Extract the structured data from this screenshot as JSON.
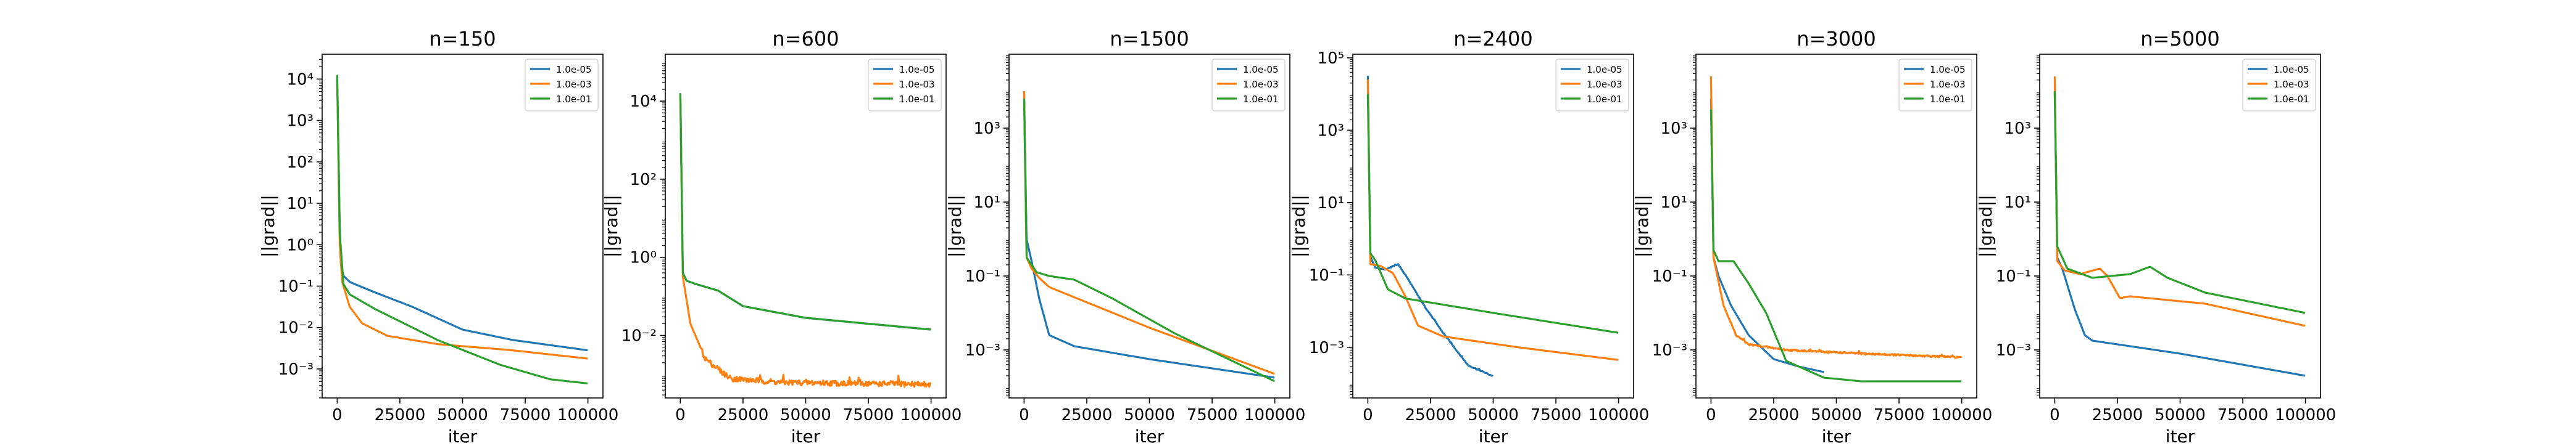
{
  "figure": {
    "colors": {
      "s1": "#1f77b4",
      "s2": "#ff7f0e",
      "s3": "#2ca02c"
    }
  },
  "chart_data": [
    {
      "type": "line",
      "title": "n=150",
      "xlabel": "iter",
      "ylabel": "||grad||",
      "xlim": [
        -6000,
        106000
      ],
      "ylim_log10": [
        -3.7,
        4.6
      ],
      "yscale": "log",
      "xticks": [
        0,
        25000,
        50000,
        75000,
        100000
      ],
      "xtick_labels": [
        "0",
        "25000",
        "50000",
        "75000",
        "100000"
      ],
      "yticks_exp": [
        -3,
        -2,
        -1,
        0,
        1,
        2,
        3,
        4
      ],
      "ytick_labels": [
        "10⁻³",
        "10⁻²",
        "10⁻¹",
        "10⁰",
        "10¹",
        "10²",
        "10³",
        "10⁴"
      ],
      "legend": {
        "entries": [
          "1.0e-05",
          "1.0e-03",
          "1.0e-01"
        ],
        "placement": "top-right"
      },
      "series": [
        {
          "name": "1.0e-05",
          "color_key": "s1",
          "noise": 0,
          "points": [
            [
              0,
              4.0
            ],
            [
              1000,
              0.5
            ],
            [
              1500,
              -0.5
            ],
            [
              2500,
              -0.75
            ],
            [
              5000,
              -0.9
            ],
            [
              15000,
              -1.15
            ],
            [
              30000,
              -1.5
            ],
            [
              50000,
              -2.05
            ],
            [
              70000,
              -2.3
            ],
            [
              100000,
              -2.55
            ]
          ]
        },
        {
          "name": "1.0e-03",
          "color_key": "s2",
          "noise": 0,
          "points": [
            [
              0,
              4.0
            ],
            [
              1000,
              0.0
            ],
            [
              2000,
              -0.9
            ],
            [
              5000,
              -1.5
            ],
            [
              10000,
              -1.9
            ],
            [
              20000,
              -2.2
            ],
            [
              40000,
              -2.4
            ],
            [
              70000,
              -2.55
            ],
            [
              100000,
              -2.75
            ]
          ]
        },
        {
          "name": "1.0e-01",
          "color_key": "s3",
          "noise": 0,
          "points": [
            [
              0,
              4.1
            ],
            [
              1000,
              0.3
            ],
            [
              2500,
              -0.95
            ],
            [
              5000,
              -1.2
            ],
            [
              15000,
              -1.55
            ],
            [
              40000,
              -2.3
            ],
            [
              65000,
              -2.9
            ],
            [
              85000,
              -3.25
            ],
            [
              100000,
              -3.35
            ]
          ]
        }
      ]
    },
    {
      "type": "line",
      "title": "n=600",
      "xlabel": "iter",
      "ylabel": "||grad||",
      "xlim": [
        -6000,
        106000
      ],
      "ylim_log10": [
        -3.6,
        5.2
      ],
      "yscale": "log",
      "xticks": [
        0,
        25000,
        50000,
        75000,
        100000
      ],
      "xtick_labels": [
        "0",
        "25000",
        "50000",
        "75000",
        "100000"
      ],
      "yticks_exp": [
        -2,
        0,
        2,
        4
      ],
      "ytick_labels": [
        "10⁻²",
        "10⁰",
        "10²",
        "10⁴"
      ],
      "legend": {
        "entries": [
          "1.0e-05",
          "1.0e-03",
          "1.0e-01"
        ],
        "placement": "top-right"
      },
      "series": [
        {
          "name": "1.0e-05",
          "color_key": "s1",
          "noise": 0,
          "points": [
            [
              0,
              4.2
            ],
            [
              1000,
              -0.4
            ],
            [
              2500,
              -0.6
            ],
            [
              7000,
              -0.7
            ],
            [
              15000,
              -0.85
            ],
            [
              25000,
              -1.25
            ],
            [
              50000,
              -1.55
            ],
            [
              100000,
              -1.85
            ]
          ]
        },
        {
          "name": "1.0e-03",
          "color_key": "s2",
          "noise": 0.25,
          "points": [
            [
              0,
              4.2
            ],
            [
              1000,
              -0.5
            ],
            [
              4000,
              -1.7
            ],
            [
              10000,
              -2.6
            ],
            [
              20000,
              -3.1
            ],
            [
              40000,
              -3.2
            ],
            [
              100000,
              -3.25
            ]
          ]
        },
        {
          "name": "1.0e-01",
          "color_key": "s3",
          "noise": 0,
          "points": [
            [
              0,
              4.2
            ],
            [
              1000,
              -0.4
            ],
            [
              2500,
              -0.6
            ],
            [
              7000,
              -0.7
            ],
            [
              15000,
              -0.85
            ],
            [
              25000,
              -1.25
            ],
            [
              50000,
              -1.55
            ],
            [
              100000,
              -1.85
            ]
          ]
        }
      ]
    },
    {
      "type": "line",
      "title": "n=1500",
      "xlabel": "iter",
      "ylabel": "||grad||",
      "xlim": [
        -6000,
        106000
      ],
      "ylim_log10": [
        -4.3,
        5.0
      ],
      "yscale": "log",
      "xticks": [
        0,
        25000,
        50000,
        75000,
        100000
      ],
      "xtick_labels": [
        "0",
        "25000",
        "50000",
        "75000",
        "100000"
      ],
      "yticks_exp": [
        -3,
        -1,
        1,
        3
      ],
      "ytick_labels": [
        "10⁻³",
        "10⁻¹",
        "10¹",
        "10³"
      ],
      "legend": {
        "entries": [
          "1.0e-05",
          "1.0e-03",
          "1.0e-01"
        ],
        "placement": "top-right"
      },
      "series": [
        {
          "name": "1.0e-05",
          "color_key": "s1",
          "noise": 0,
          "points": [
            [
              0,
              4.0
            ],
            [
              1000,
              0.0
            ],
            [
              3000,
              -0.6
            ],
            [
              6000,
              -1.6
            ],
            [
              10000,
              -2.6
            ],
            [
              20000,
              -2.9
            ],
            [
              50000,
              -3.25
            ],
            [
              100000,
              -3.75
            ]
          ]
        },
        {
          "name": "1.0e-03",
          "color_key": "s2",
          "noise": 0,
          "points": [
            [
              0,
              4.0
            ],
            [
              1000,
              -0.5
            ],
            [
              3000,
              -0.8
            ],
            [
              6000,
              -1.05
            ],
            [
              10000,
              -1.3
            ],
            [
              50000,
              -2.4
            ],
            [
              100000,
              -3.65
            ]
          ]
        },
        {
          "name": "1.0e-01",
          "color_key": "s3",
          "noise": 0,
          "points": [
            [
              0,
              3.8
            ],
            [
              1000,
              -0.5
            ],
            [
              5000,
              -0.9
            ],
            [
              10000,
              -1.0
            ],
            [
              20000,
              -1.1
            ],
            [
              35000,
              -1.6
            ],
            [
              60000,
              -2.55
            ],
            [
              100000,
              -3.85
            ]
          ]
        }
      ]
    },
    {
      "type": "line",
      "title": "n=2400",
      "xlabel": "iter",
      "ylabel": "||grad||",
      "xlim": [
        -6000,
        106000
      ],
      "ylim_log10": [
        -4.4,
        5.1
      ],
      "yscale": "log",
      "xticks": [
        0,
        25000,
        50000,
        75000,
        100000
      ],
      "xtick_labels": [
        "0",
        "25000",
        "50000",
        "75000",
        "100000"
      ],
      "yticks_exp": [
        -3,
        -1,
        1,
        3,
        5
      ],
      "ytick_labels": [
        "10⁻³",
        "10⁻¹",
        "10¹",
        "10³",
        "10⁵"
      ],
      "legend": {
        "entries": [
          "1.0e-05",
          "1.0e-03",
          "1.0e-01"
        ],
        "placement": "top-right"
      },
      "series": [
        {
          "name": "1.0e-05",
          "color_key": "s1",
          "noise": 0.05,
          "points": [
            [
              0,
              4.5
            ],
            [
              1000,
              -0.5
            ],
            [
              3000,
              -0.8
            ],
            [
              7000,
              -0.85
            ],
            [
              12000,
              -0.7
            ],
            [
              15000,
              -1.0
            ],
            [
              22000,
              -1.8
            ],
            [
              30000,
              -2.6
            ],
            [
              40000,
              -3.5
            ],
            [
              50000,
              -3.8
            ]
          ]
        },
        {
          "name": "1.0e-03",
          "color_key": "s2",
          "noise": 0,
          "points": [
            [
              0,
              4.4
            ],
            [
              1000,
              -0.7
            ],
            [
              5000,
              -0.75
            ],
            [
              10000,
              -0.95
            ],
            [
              15000,
              -1.6
            ],
            [
              20000,
              -2.4
            ],
            [
              30000,
              -2.7
            ],
            [
              60000,
              -3.0
            ],
            [
              100000,
              -3.35
            ]
          ]
        },
        {
          "name": "1.0e-01",
          "color_key": "s3",
          "noise": 0,
          "points": [
            [
              0,
              4.0
            ],
            [
              1000,
              -0.4
            ],
            [
              3000,
              -0.6
            ],
            [
              8000,
              -1.4
            ],
            [
              15000,
              -1.65
            ],
            [
              50000,
              -2.05
            ],
            [
              100000,
              -2.6
            ]
          ]
        }
      ]
    },
    {
      "type": "line",
      "title": "n=3000",
      "xlabel": "iter",
      "ylabel": "||grad||",
      "xlim": [
        -6000,
        106000
      ],
      "ylim_log10": [
        -4.3,
        5.0
      ],
      "yscale": "log",
      "xticks": [
        0,
        25000,
        50000,
        75000,
        100000
      ],
      "xtick_labels": [
        "0",
        "25000",
        "50000",
        "75000",
        "100000"
      ],
      "yticks_exp": [
        -3,
        -1,
        1,
        3
      ],
      "ytick_labels": [
        "10⁻³",
        "10⁻¹",
        "10¹",
        "10³"
      ],
      "legend": {
        "entries": [
          "1.0e-05",
          "1.0e-03",
          "1.0e-01"
        ],
        "placement": "top-right"
      },
      "series": [
        {
          "name": "1.0e-05",
          "color_key": "s1",
          "noise": 0,
          "points": [
            [
              0,
              3.8
            ],
            [
              1000,
              -0.5
            ],
            [
              3000,
              -1.0
            ],
            [
              8000,
              -1.8
            ],
            [
              15000,
              -2.6
            ],
            [
              25000,
              -3.25
            ],
            [
              35000,
              -3.45
            ],
            [
              45000,
              -3.6
            ]
          ]
        },
        {
          "name": "1.0e-03",
          "color_key": "s2",
          "noise": 0.08,
          "points": [
            [
              0,
              4.4
            ],
            [
              1000,
              -0.5
            ],
            [
              5000,
              -1.8
            ],
            [
              10000,
              -2.6
            ],
            [
              15000,
              -2.85
            ],
            [
              30000,
              -3.0
            ],
            [
              60000,
              -3.1
            ],
            [
              100000,
              -3.2
            ]
          ]
        },
        {
          "name": "1.0e-01",
          "color_key": "s3",
          "noise": 0,
          "points": [
            [
              0,
              3.5
            ],
            [
              1000,
              -0.3
            ],
            [
              3000,
              -0.6
            ],
            [
              9000,
              -0.6
            ],
            [
              15000,
              -1.2
            ],
            [
              22000,
              -2.0
            ],
            [
              30000,
              -3.3
            ],
            [
              45000,
              -3.75
            ],
            [
              60000,
              -3.85
            ],
            [
              100000,
              -3.85
            ]
          ]
        }
      ]
    },
    {
      "type": "line",
      "title": "n=5000",
      "xlabel": "iter",
      "ylabel": "||grad||",
      "xlim": [
        -6000,
        106000
      ],
      "ylim_log10": [
        -4.3,
        5.0
      ],
      "yscale": "log",
      "xticks": [
        0,
        25000,
        50000,
        75000,
        100000
      ],
      "xtick_labels": [
        "0",
        "25000",
        "50000",
        "75000",
        "100000"
      ],
      "yticks_exp": [
        -3,
        -1,
        1,
        3
      ],
      "ytick_labels": [
        "10⁻³",
        "10⁻¹",
        "10¹",
        "10³"
      ],
      "legend": {
        "entries": [
          "1.0e-05",
          "1.0e-03",
          "1.0e-01"
        ],
        "placement": "top-right"
      },
      "series": [
        {
          "name": "1.0e-05",
          "color_key": "s1",
          "noise": 0,
          "points": [
            [
              0,
              4.0
            ],
            [
              1000,
              -0.5
            ],
            [
              3000,
              -0.8
            ],
            [
              8000,
              -1.9
            ],
            [
              12000,
              -2.6
            ],
            [
              15000,
              -2.75
            ],
            [
              50000,
              -3.1
            ],
            [
              100000,
              -3.7
            ]
          ]
        },
        {
          "name": "1.0e-03",
          "color_key": "s2",
          "noise": 0,
          "points": [
            [
              0,
              4.4
            ],
            [
              1000,
              -0.6
            ],
            [
              4000,
              -0.85
            ],
            [
              10000,
              -0.95
            ],
            [
              18000,
              -0.8
            ],
            [
              21000,
              -1.0
            ],
            [
              26000,
              -1.6
            ],
            [
              30000,
              -1.55
            ],
            [
              60000,
              -1.75
            ],
            [
              100000,
              -2.35
            ]
          ]
        },
        {
          "name": "1.0e-01",
          "color_key": "s3",
          "noise": 0,
          "points": [
            [
              0,
              4.0
            ],
            [
              1000,
              -0.2
            ],
            [
              5000,
              -0.8
            ],
            [
              15000,
              -1.05
            ],
            [
              30000,
              -0.95
            ],
            [
              38000,
              -0.75
            ],
            [
              45000,
              -1.05
            ],
            [
              60000,
              -1.45
            ],
            [
              100000,
              -2.0
            ]
          ]
        }
      ]
    }
  ]
}
